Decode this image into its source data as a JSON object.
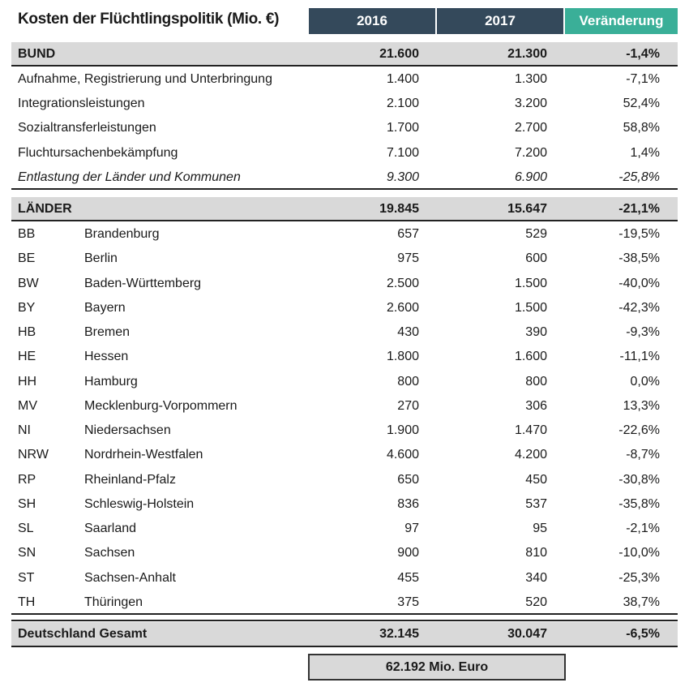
{
  "colors": {
    "header_dark": "#34495b",
    "header_accent": "#3aaf98",
    "row_highlight": "#d9d9d9"
  },
  "chart_data": {
    "type": "table",
    "title": "Kosten der Flüchtlingspolitik (Mio. €)",
    "columns": [
      "2016",
      "2017",
      "Veränderung"
    ],
    "bund": {
      "label": "BUND",
      "values": [
        "21.600",
        "21.300",
        "-1,4%"
      ],
      "rows": [
        {
          "label": "Aufnahme, Registrierung und Unterbringung",
          "values": [
            "1.400",
            "1.300",
            "-7,1%"
          ]
        },
        {
          "label": "Integrationsleistungen",
          "values": [
            "2.100",
            "3.200",
            "52,4%"
          ]
        },
        {
          "label": "Sozialtransferleistungen",
          "values": [
            "1.700",
            "2.700",
            "58,8%"
          ]
        },
        {
          "label": "Fluchtursachenbekämpfung",
          "values": [
            "7.100",
            "7.200",
            "1,4%"
          ]
        },
        {
          "label": "Entlastung der Länder und Kommunen",
          "values": [
            "9.300",
            "6.900",
            "-25,8%"
          ],
          "italic": true
        }
      ]
    },
    "laender": {
      "label": "LÄNDER",
      "values": [
        "19.845",
        "15.647",
        "-21,1%"
      ],
      "rows": [
        {
          "code": "BB",
          "label": "Brandenburg",
          "values": [
            "657",
            "529",
            "-19,5%"
          ]
        },
        {
          "code": "BE",
          "label": "Berlin",
          "values": [
            "975",
            "600",
            "-38,5%"
          ]
        },
        {
          "code": "BW",
          "label": "Baden-Württemberg",
          "values": [
            "2.500",
            "1.500",
            "-40,0%"
          ]
        },
        {
          "code": "BY",
          "label": "Bayern",
          "values": [
            "2.600",
            "1.500",
            "-42,3%"
          ]
        },
        {
          "code": "HB",
          "label": "Bremen",
          "values": [
            "430",
            "390",
            "-9,3%"
          ]
        },
        {
          "code": "HE",
          "label": "Hessen",
          "values": [
            "1.800",
            "1.600",
            "-11,1%"
          ]
        },
        {
          "code": "HH",
          "label": "Hamburg",
          "values": [
            "800",
            "800",
            "0,0%"
          ]
        },
        {
          "code": "MV",
          "label": "Mecklenburg-Vorpommern",
          "values": [
            "270",
            "306",
            "13,3%"
          ]
        },
        {
          "code": "NI",
          "label": "Niedersachsen",
          "values": [
            "1.900",
            "1.470",
            "-22,6%"
          ]
        },
        {
          "code": "NRW",
          "label": "Nordrhein-Westfalen",
          "values": [
            "4.600",
            "4.200",
            "-8,7%"
          ]
        },
        {
          "code": "RP",
          "label": "Rheinland-Pfalz",
          "values": [
            "650",
            "450",
            "-30,8%"
          ]
        },
        {
          "code": "SH",
          "label": "Schleswig-Holstein",
          "values": [
            "836",
            "537",
            "-35,8%"
          ]
        },
        {
          "code": "SL",
          "label": "Saarland",
          "values": [
            "97",
            "95",
            "-2,1%"
          ]
        },
        {
          "code": "SN",
          "label": "Sachsen",
          "values": [
            "900",
            "810",
            "-10,0%"
          ]
        },
        {
          "code": "ST",
          "label": "Sachsen-Anhalt",
          "values": [
            "455",
            "340",
            "-25,3%"
          ]
        },
        {
          "code": "TH",
          "label": "Thüringen",
          "values": [
            "375",
            "520",
            "38,7%"
          ]
        }
      ]
    },
    "total": {
      "label": "Deutschland Gesamt",
      "values": [
        "32.145",
        "30.047",
        "-6,5%"
      ]
    },
    "grand_total": "62.192 Mio. Euro"
  }
}
